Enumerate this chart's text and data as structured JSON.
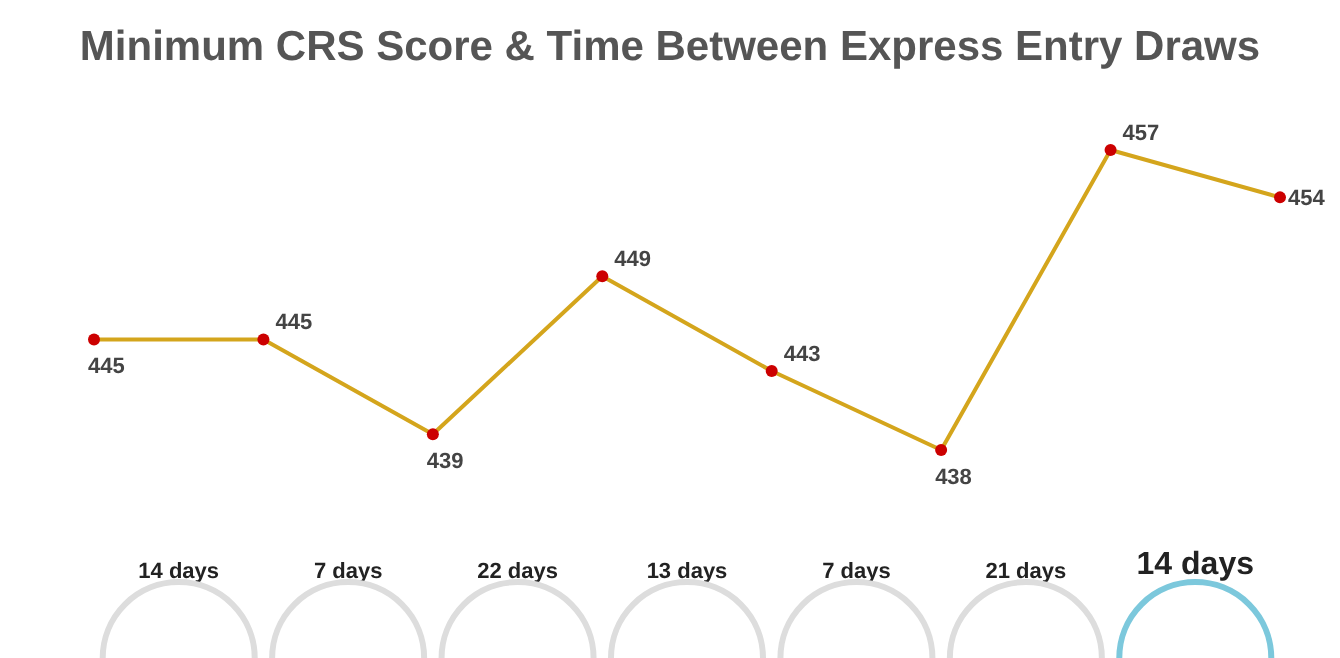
{
  "chart_data": {
    "type": "line",
    "title": "Minimum CRS Score & Time Between Express Entry Draws",
    "categories": [
      null,
      null,
      null,
      null,
      null,
      null,
      null,
      null
    ],
    "series": [
      {
        "color": "#d4a51c",
        "values": [
          445,
          445,
          439,
          449,
          443,
          438,
          457,
          454
        ]
      }
    ],
    "data_labels": true,
    "marker": "circle",
    "annotations": [
      "14 days",
      "7 days",
      "22 days",
      "13 days",
      "7 days",
      "21 days",
      "14 days"
    ]
  }
}
